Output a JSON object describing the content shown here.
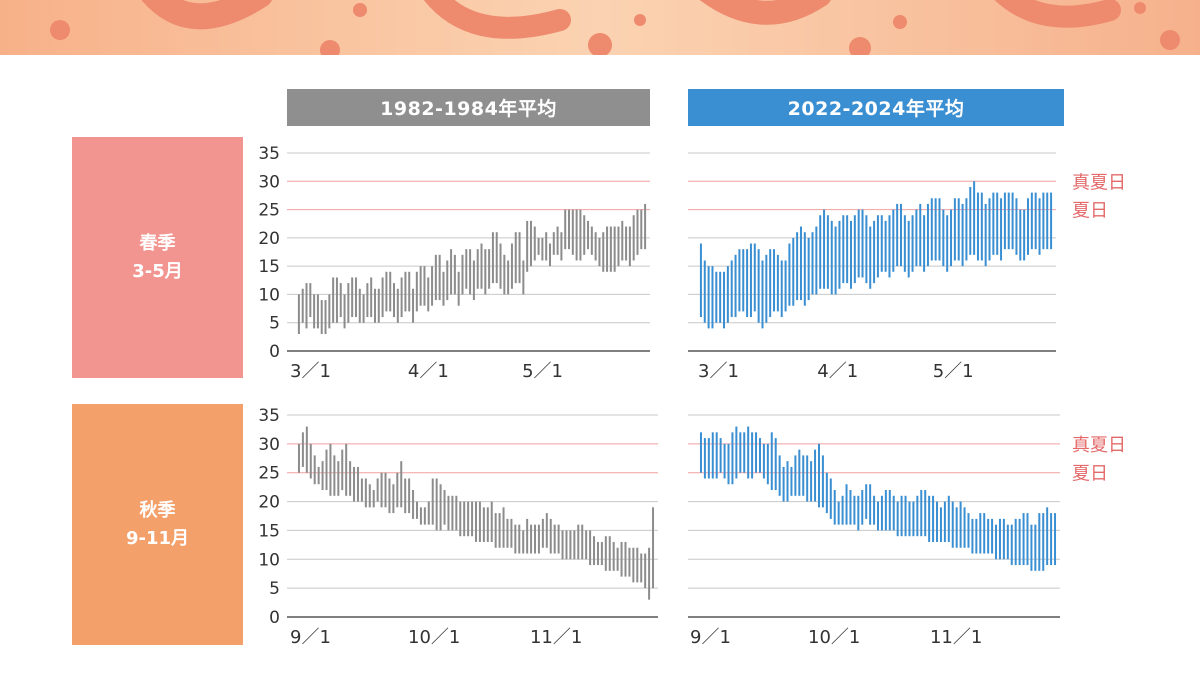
{
  "headers": {
    "old": "1982-1984年平均",
    "new": "2022-2024年平均"
  },
  "seasons": {
    "spring": {
      "name": "春季",
      "months": "3-5月"
    },
    "autumn": {
      "name": "秋季",
      "months": "9-11月"
    }
  },
  "colors": {
    "old_bars": "#8c8c8c",
    "new_bars": "#3a8fd2",
    "threshold_line": "#f2a0a0",
    "threshold_label": "#e46a6a",
    "grid": "#c8c8c8",
    "spring_box": "#f2948f",
    "autumn_box": "#f4a06b"
  },
  "thresholds": [
    {
      "label": "真夏日",
      "value": 30
    },
    {
      "label": "夏日",
      "value": 25
    }
  ],
  "chart_data": [
    {
      "type": "bar",
      "subtype": "range",
      "column": "1982-1984年平均",
      "season": "春季 3-5月",
      "ylim": [
        0,
        35
      ],
      "yticks": [
        0,
        5,
        10,
        15,
        20,
        25,
        30,
        35
      ],
      "x_tick_labels": [
        "3／1",
        "4／1",
        "5／1"
      ],
      "x_tick_days": [
        0,
        31,
        61
      ],
      "day_count": 92,
      "low": [
        3,
        5,
        4,
        6,
        4,
        4,
        3,
        3,
        4,
        5,
        5,
        6,
        4,
        5,
        6,
        6,
        5,
        5,
        6,
        6,
        5,
        5,
        6,
        7,
        7,
        6,
        5,
        6,
        7,
        7,
        5,
        7,
        8,
        8,
        7,
        8,
        9,
        9,
        8,
        9,
        10,
        10,
        8,
        10,
        11,
        10,
        9,
        11,
        11,
        10,
        11,
        12,
        12,
        11,
        10,
        10,
        11,
        12,
        12,
        10,
        14,
        15,
        16,
        17,
        16,
        16,
        15,
        17,
        17,
        16,
        18,
        18,
        17,
        16,
        16,
        17,
        18,
        17,
        16,
        15,
        14,
        14,
        14,
        14,
        15,
        16,
        16,
        15,
        16,
        17,
        18,
        18
      ],
      "high": [
        10,
        11,
        12,
        12,
        10,
        10,
        9,
        9,
        10,
        13,
        13,
        12,
        10,
        12,
        13,
        13,
        11,
        10,
        12,
        13,
        11,
        11,
        13,
        14,
        14,
        12,
        11,
        13,
        14,
        14,
        11,
        14,
        15,
        15,
        13,
        15,
        17,
        17,
        14,
        16,
        18,
        17,
        14,
        17,
        18,
        18,
        16,
        18,
        19,
        18,
        18,
        21,
        21,
        19,
        17,
        16,
        19,
        21,
        21,
        16,
        23,
        23,
        22,
        20,
        20,
        21,
        19,
        21,
        22,
        21,
        25,
        25,
        25,
        25,
        25,
        24,
        23,
        22,
        21,
        20,
        21,
        22,
        22,
        22,
        22,
        23,
        22,
        22,
        24,
        25,
        25,
        26
      ]
    },
    {
      "type": "bar",
      "subtype": "range",
      "column": "2022-2024年平均",
      "season": "春季 3-5月",
      "ylim": [
        0,
        35
      ],
      "yticks": [
        0,
        5,
        10,
        15,
        20,
        25,
        30,
        35
      ],
      "x_tick_labels": [
        "3／1",
        "4／1",
        "5／1"
      ],
      "x_tick_days": [
        0,
        31,
        61
      ],
      "day_count": 92,
      "low": [
        6,
        5,
        4,
        4,
        5,
        5,
        4,
        5,
        6,
        6,
        7,
        7,
        6,
        6,
        7,
        5,
        4,
        5,
        6,
        7,
        7,
        6,
        7,
        8,
        8,
        9,
        9,
        8,
        9,
        10,
        10,
        11,
        11,
        11,
        10,
        10,
        11,
        12,
        12,
        11,
        12,
        13,
        13,
        12,
        11,
        12,
        13,
        14,
        14,
        13,
        14,
        15,
        15,
        14,
        13,
        14,
        15,
        15,
        14,
        15,
        16,
        16,
        16,
        15,
        14,
        15,
        16,
        16,
        15,
        16,
        17,
        17,
        16,
        16,
        15,
        16,
        17,
        17,
        16,
        18,
        18,
        18,
        17,
        16,
        16,
        17,
        18,
        18,
        17,
        18,
        18,
        18
      ],
      "high": [
        19,
        16,
        15,
        15,
        14,
        14,
        14,
        15,
        16,
        17,
        18,
        18,
        18,
        19,
        19,
        18,
        16,
        17,
        18,
        18,
        17,
        16,
        16,
        19,
        20,
        21,
        22,
        21,
        20,
        21,
        22,
        24,
        25,
        24,
        23,
        22,
        23,
        24,
        24,
        23,
        24,
        25,
        25,
        24,
        22,
        23,
        24,
        24,
        23,
        24,
        25,
        26,
        26,
        24,
        23,
        24,
        25,
        26,
        24,
        26,
        27,
        27,
        27,
        25,
        24,
        25,
        27,
        27,
        26,
        27,
        29,
        30,
        28,
        28,
        26,
        27,
        28,
        28,
        27,
        28,
        28,
        28,
        27,
        25,
        25,
        27,
        28,
        28,
        27,
        28,
        28,
        28
      ]
    },
    {
      "type": "bar",
      "subtype": "range",
      "column": "1982-1984年平均",
      "season": "秋季 9-11月",
      "ylim": [
        0,
        35
      ],
      "yticks": [
        0,
        5,
        10,
        15,
        20,
        25,
        30,
        35
      ],
      "x_tick_labels": [
        "9／1",
        "10／1",
        "11／1"
      ],
      "x_tick_days": [
        0,
        30,
        61
      ],
      "day_count": 91,
      "low": [
        25,
        26,
        25,
        24,
        23,
        23,
        22,
        22,
        21,
        21,
        21,
        22,
        21,
        21,
        20,
        20,
        20,
        19,
        19,
        19,
        20,
        19,
        19,
        18,
        18,
        19,
        19,
        18,
        18,
        17,
        17,
        16,
        16,
        16,
        16,
        15,
        15,
        16,
        15,
        15,
        15,
        14,
        14,
        14,
        14,
        13,
        13,
        13,
        13,
        13,
        12,
        12,
        12,
        12,
        12,
        11,
        11,
        11,
        11,
        11,
        11,
        11,
        12,
        12,
        11,
        11,
        11,
        10,
        10,
        10,
        10,
        10,
        10,
        10,
        9,
        9,
        9,
        9,
        8,
        8,
        8,
        8,
        7,
        7,
        7,
        6,
        6,
        6,
        5,
        3,
        5
      ],
      "high": [
        30,
        32,
        33,
        30,
        28,
        26,
        27,
        29,
        30,
        28,
        27,
        29,
        30,
        27,
        26,
        26,
        24,
        24,
        23,
        22,
        24,
        25,
        25,
        24,
        23,
        25,
        27,
        24,
        24,
        22,
        20,
        19,
        19,
        20,
        24,
        24,
        23,
        22,
        21,
        21,
        21,
        20,
        20,
        20,
        20,
        20,
        20,
        19,
        19,
        20,
        18,
        18,
        19,
        17,
        17,
        16,
        16,
        15,
        17,
        16,
        16,
        16,
        17,
        18,
        17,
        16,
        16,
        15,
        15,
        15,
        15,
        16,
        16,
        15,
        15,
        14,
        13,
        13,
        14,
        14,
        13,
        12,
        13,
        13,
        12,
        12,
        12,
        11,
        11,
        12,
        19
      ]
    },
    {
      "type": "bar",
      "subtype": "range",
      "column": "2022-2024年平均",
      "season": "秋季 9-11月",
      "ylim": [
        0,
        35
      ],
      "yticks": [
        0,
        5,
        10,
        15,
        20,
        25,
        30,
        35
      ],
      "x_tick_labels": [
        "9／1",
        "10／1",
        "11／1"
      ],
      "x_tick_days": [
        0,
        30,
        61
      ],
      "day_count": 91,
      "low": [
        25,
        24,
        24,
        24,
        24,
        25,
        24,
        23,
        23,
        24,
        25,
        25,
        24,
        24,
        25,
        25,
        24,
        23,
        22,
        22,
        21,
        20,
        20,
        21,
        21,
        21,
        21,
        20,
        20,
        20,
        19,
        19,
        18,
        17,
        16,
        16,
        16,
        16,
        16,
        16,
        15,
        16,
        17,
        16,
        16,
        15,
        15,
        15,
        15,
        15,
        14,
        14,
        14,
        14,
        14,
        14,
        14,
        14,
        13,
        13,
        13,
        13,
        13,
        13,
        12,
        12,
        12,
        12,
        12,
        11,
        11,
        11,
        11,
        11,
        11,
        10,
        10,
        10,
        10,
        9,
        9,
        9,
        9,
        9,
        8,
        8,
        8,
        8,
        9,
        9,
        9
      ],
      "high": [
        32,
        31,
        31,
        32,
        32,
        31,
        30,
        30,
        32,
        33,
        32,
        32,
        33,
        32,
        32,
        31,
        30,
        30,
        32,
        31,
        28,
        26,
        27,
        26,
        28,
        29,
        28,
        28,
        27,
        29,
        30,
        28,
        25,
        24,
        22,
        20,
        21,
        23,
        22,
        21,
        21,
        22,
        23,
        23,
        21,
        20,
        21,
        22,
        22,
        21,
        20,
        21,
        21,
        20,
        20,
        21,
        22,
        22,
        21,
        21,
        20,
        19,
        20,
        21,
        20,
        19,
        20,
        19,
        18,
        17,
        17,
        18,
        18,
        17,
        17,
        16,
        17,
        17,
        16,
        16,
        17,
        17,
        18,
        18,
        16,
        16,
        18,
        18,
        19,
        18,
        18
      ]
    }
  ]
}
